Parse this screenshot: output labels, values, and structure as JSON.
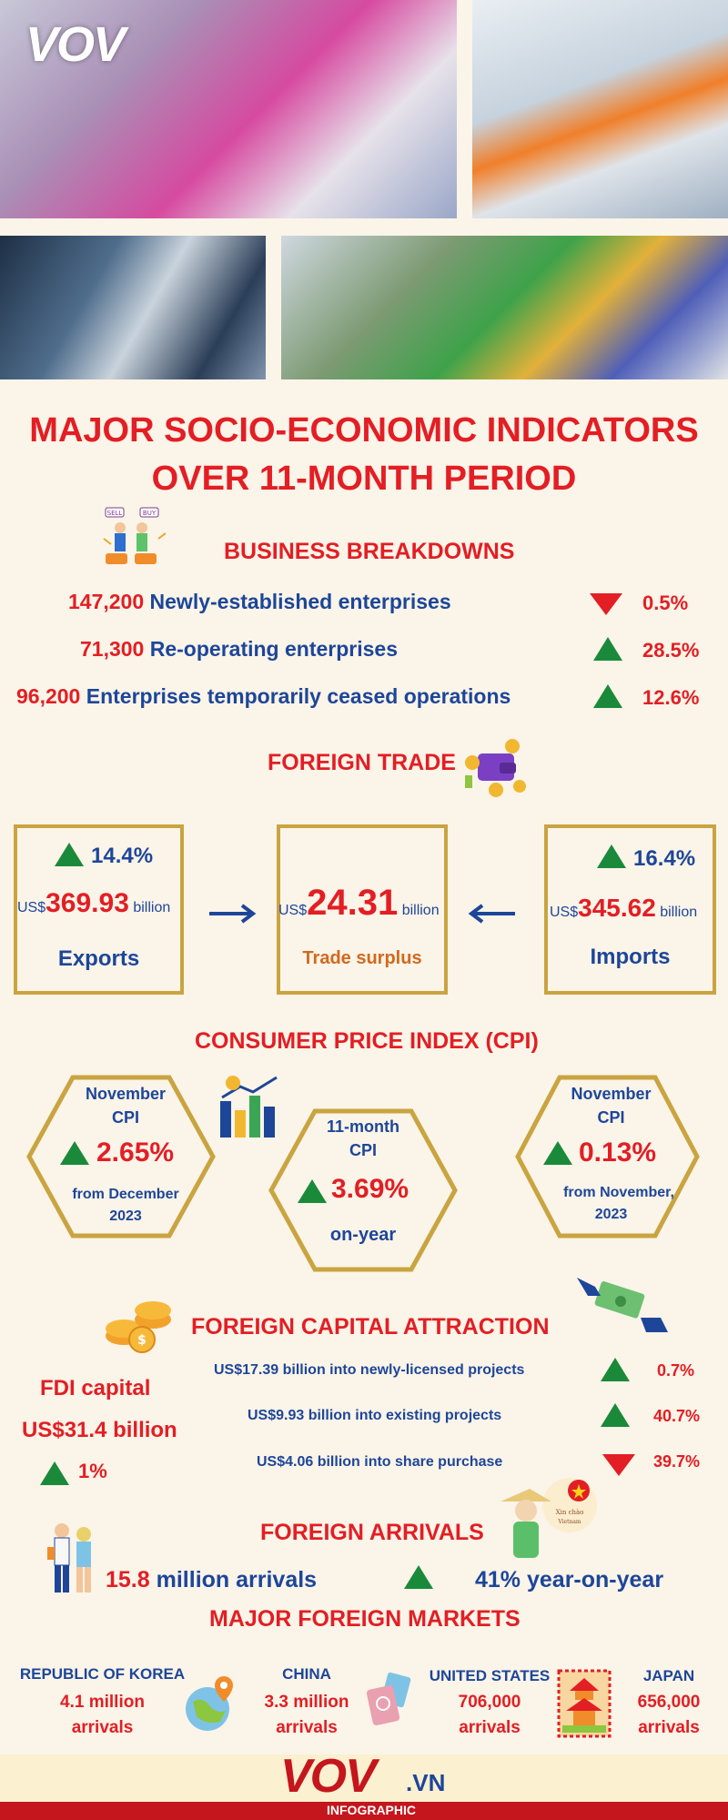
{
  "brand": {
    "logo_text": "VOV",
    "footer_logo": "VOV",
    "footer_suffix": ".VN",
    "footer_tag": "INFOGRAPHIC"
  },
  "title": {
    "line1": "MAJOR SOCIO-ECONOMIC INDICATORS",
    "line2": "OVER 11-MONTH PERIOD"
  },
  "business": {
    "heading": "BUSINESS BREAKDOWNS",
    "icon_labels": [
      "SELL",
      "BUY"
    ],
    "rows": [
      {
        "value": "147,200",
        "label": "Newly-established enterprises",
        "trend": "down",
        "pct": "0.5%"
      },
      {
        "value": "71,300",
        "label": "Re-operating enterprises",
        "trend": "up",
        "pct": "28.5%"
      },
      {
        "value": "96,200",
        "label": "Enterprises temporarily ceased operations",
        "trend": "up",
        "pct": "12.6%"
      }
    ]
  },
  "trade": {
    "heading": "FOREIGN TRADE",
    "exports": {
      "pct": "14.4%",
      "prefix": "US$",
      "value": "369.93",
      "unit": "billion",
      "label": "Exports"
    },
    "surplus": {
      "prefix": "US$",
      "value": "24.31",
      "unit": "billion",
      "label": "Trade surplus"
    },
    "imports": {
      "pct": "16.4%",
      "prefix": "US$",
      "value": "345.62",
      "unit": "billion",
      "label": "Imports"
    }
  },
  "cpi": {
    "heading": "CONSUMER PRICE INDEX (CPI)",
    "left": {
      "title1": "November",
      "title2": "CPI",
      "pct": "2.65%",
      "sub1": "from December",
      "sub2": "2023"
    },
    "middle": {
      "title1": "11-month",
      "title2": "CPI",
      "pct": "3.69%",
      "sub1": "on-year"
    },
    "right": {
      "title1": "November",
      "title2": "CPI",
      "pct": "0.13%",
      "sub1": "from November,",
      "sub2": "2023"
    }
  },
  "fdi": {
    "heading": "FOREIGN CAPITAL ATTRACTION",
    "label": "FDI capital",
    "total": "US$31.4 billion",
    "total_pct": "1%",
    "rows": [
      {
        "text": "US$17.39 billion into newly-licensed projects",
        "trend": "up",
        "pct": "0.7%"
      },
      {
        "text": "US$9.93 billion into existing projects",
        "trend": "up",
        "pct": "40.7%"
      },
      {
        "text": "US$4.06 billion into share purchase",
        "trend": "down",
        "pct": "39.7%"
      }
    ]
  },
  "arrivals": {
    "heading": "FOREIGN ARRIVALS",
    "count_value": "15.8",
    "count_label": "million arrivals",
    "yoy": "41% year-on-year",
    "badge_text1": "Xin chào",
    "badge_text2": "Vietnam"
  },
  "markets": {
    "heading": "MAJOR FOREIGN MARKETS",
    "items": [
      {
        "country": "REPUBLIC OF KOREA",
        "line1": "4.1 million",
        "line2": "arrivals"
      },
      {
        "country": "CHINA",
        "line1": "3.3 million",
        "line2": "arrivals"
      },
      {
        "country": "UNITED STATES",
        "line1": "706,000",
        "line2": "arrivals"
      },
      {
        "country": "JAPAN",
        "line1": "656,000",
        "line2": "arrivals"
      }
    ]
  },
  "colors": {
    "red": "#e31e24",
    "blue": "#1d4699",
    "green": "#1a8a3a",
    "gold": "#c9a440",
    "cream": "#fbf4e8"
  }
}
